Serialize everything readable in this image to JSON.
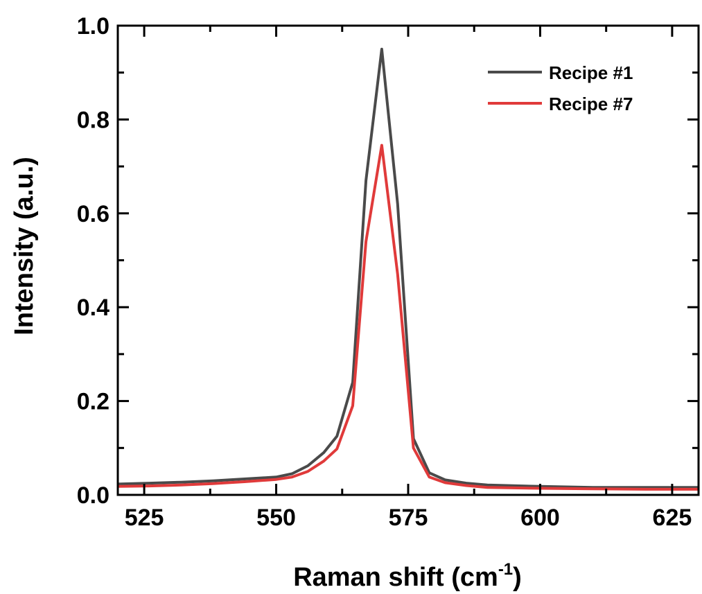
{
  "chart_data": {
    "type": "line",
    "xlabel": "Raman shift (cm",
    "xlabel_sup": "-1",
    "xlabel_close": ")",
    "ylabel": "Intensity (a.u.)",
    "xlim": [
      520,
      630
    ],
    "ylim": [
      0,
      1.0
    ],
    "xticks": [
      525,
      550,
      575,
      600,
      625
    ],
    "xtick_labels": [
      "525",
      "550",
      "575",
      "600",
      "625"
    ],
    "yticks": [
      0,
      0.2,
      0.4,
      0.6,
      0.8,
      1.0
    ],
    "ytick_labels": [
      "0.0",
      "0.2",
      "0.4",
      "0.6",
      "0.8",
      "1.0"
    ],
    "legend_position": "top-right",
    "grid": false,
    "series": [
      {
        "name": "Recipe #1",
        "color": "#4a4a4a",
        "x": [
          520,
          526,
          532,
          538,
          544,
          550,
          553,
          556,
          559,
          561.5,
          564.5,
          567,
          570,
          573,
          576,
          579,
          582,
          586,
          590,
          600,
          610,
          620,
          630
        ],
        "y": [
          0.023,
          0.025,
          0.027,
          0.03,
          0.034,
          0.038,
          0.045,
          0.062,
          0.09,
          0.125,
          0.24,
          0.67,
          0.95,
          0.62,
          0.12,
          0.047,
          0.032,
          0.025,
          0.021,
          0.018,
          0.016,
          0.016,
          0.016
        ]
      },
      {
        "name": "Recipe #7",
        "color": "#e03a3a",
        "x": [
          520,
          526,
          532,
          538,
          544,
          550,
          553,
          556,
          559,
          561.5,
          564.5,
          567,
          570,
          573,
          576,
          579,
          582,
          586,
          590,
          600,
          610,
          620,
          630
        ],
        "y": [
          0.018,
          0.019,
          0.021,
          0.024,
          0.028,
          0.033,
          0.038,
          0.05,
          0.072,
          0.098,
          0.19,
          0.54,
          0.745,
          0.47,
          0.1,
          0.038,
          0.026,
          0.02,
          0.016,
          0.014,
          0.013,
          0.012,
          0.012
        ]
      }
    ]
  }
}
